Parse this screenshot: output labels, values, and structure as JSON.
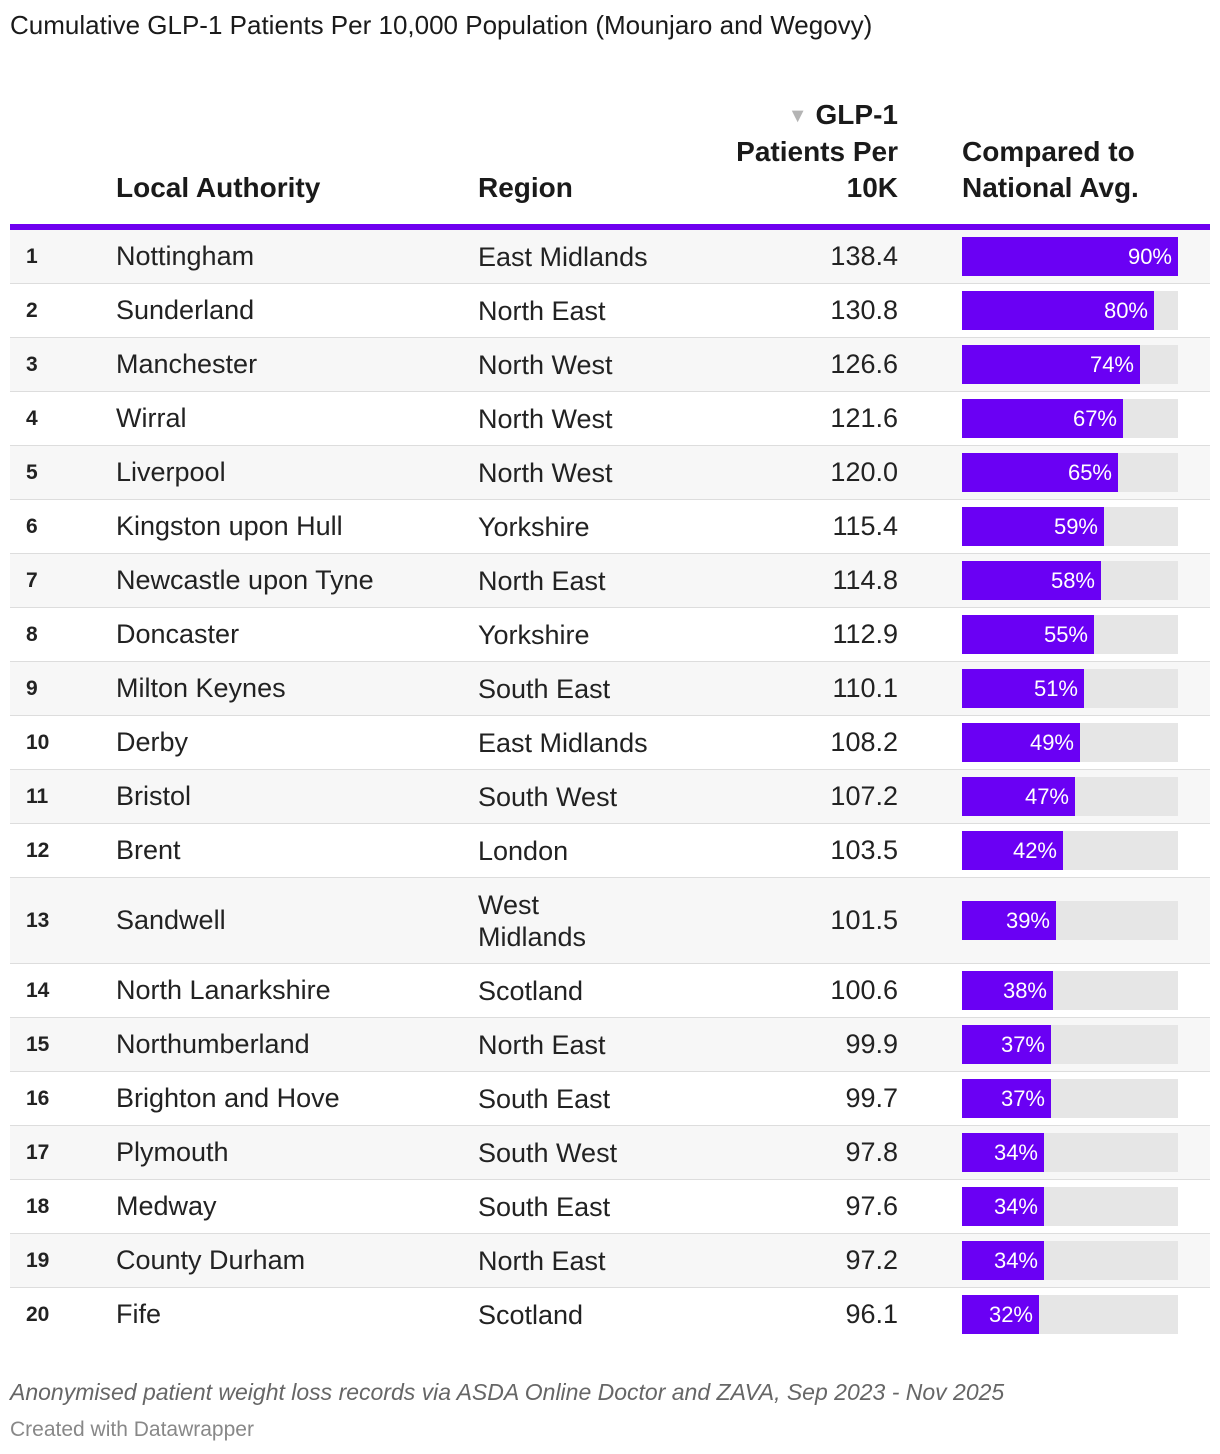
{
  "title": "Cumulative GLP-1 Patients Per 10,000 Population (Mounjaro and Wegovy)",
  "columns": {
    "local_authority": "Local Authority",
    "region": "Region",
    "value_line1": "GLP-1",
    "value_line2": "Patients Per",
    "value_line3": "10K",
    "compare_line1": "Compared to",
    "compare_line2": "National Avg.",
    "sort_icon": "sort-descending-icon"
  },
  "colors": {
    "accent": "#6a00f4",
    "header_rule": "#6f00f0",
    "bar_track": "#e6e6e6",
    "row_stripe": "#f7f7f7"
  },
  "chart_data": {
    "type": "table",
    "bar_max_percent": 90,
    "rows": [
      {
        "rank": "1",
        "authority": "Nottingham",
        "region": "East Midlands",
        "value": "138.4",
        "compare": 90,
        "compare_label": "90%"
      },
      {
        "rank": "2",
        "authority": "Sunderland",
        "region": "North East",
        "value": "130.8",
        "compare": 80,
        "compare_label": "80%"
      },
      {
        "rank": "3",
        "authority": "Manchester",
        "region": "North West",
        "value": "126.6",
        "compare": 74,
        "compare_label": "74%"
      },
      {
        "rank": "4",
        "authority": "Wirral",
        "region": "North West",
        "value": "121.6",
        "compare": 67,
        "compare_label": "67%"
      },
      {
        "rank": "5",
        "authority": "Liverpool",
        "region": "North West",
        "value": "120.0",
        "compare": 65,
        "compare_label": "65%"
      },
      {
        "rank": "6",
        "authority": "Kingston upon Hull",
        "region": "Yorkshire",
        "value": "115.4",
        "compare": 59,
        "compare_label": "59%"
      },
      {
        "rank": "7",
        "authority": "Newcastle upon Tyne",
        "region": "North East",
        "value": "114.8",
        "compare": 58,
        "compare_label": "58%"
      },
      {
        "rank": "8",
        "authority": "Doncaster",
        "region": "Yorkshire",
        "value": "112.9",
        "compare": 55,
        "compare_label": "55%"
      },
      {
        "rank": "9",
        "authority": "Milton Keynes",
        "region": "South East",
        "value": "110.1",
        "compare": 51,
        "compare_label": "51%"
      },
      {
        "rank": "10",
        "authority": "Derby",
        "region": "East Midlands",
        "value": "108.2",
        "compare": 49,
        "compare_label": "49%"
      },
      {
        "rank": "11",
        "authority": "Bristol",
        "region": "South West",
        "value": "107.2",
        "compare": 47,
        "compare_label": "47%"
      },
      {
        "rank": "12",
        "authority": "Brent",
        "region": "London",
        "value": "103.5",
        "compare": 42,
        "compare_label": "42%"
      },
      {
        "rank": "13",
        "authority": "Sandwell",
        "region": "West Midlands",
        "value": "101.5",
        "compare": 39,
        "compare_label": "39%"
      },
      {
        "rank": "14",
        "authority": "North Lanarkshire",
        "region": "Scotland",
        "value": "100.6",
        "compare": 38,
        "compare_label": "38%"
      },
      {
        "rank": "15",
        "authority": "Northumberland",
        "region": "North East",
        "value": "99.9",
        "compare": 37,
        "compare_label": "37%"
      },
      {
        "rank": "16",
        "authority": "Brighton and Hove",
        "region": "South East",
        "value": "99.7",
        "compare": 37,
        "compare_label": "37%"
      },
      {
        "rank": "17",
        "authority": "Plymouth",
        "region": "South West",
        "value": "97.8",
        "compare": 34,
        "compare_label": "34%"
      },
      {
        "rank": "18",
        "authority": "Medway",
        "region": "South East",
        "value": "97.6",
        "compare": 34,
        "compare_label": "34%"
      },
      {
        "rank": "19",
        "authority": "County Durham",
        "region": "North East",
        "value": "97.2",
        "compare": 34,
        "compare_label": "34%"
      },
      {
        "rank": "20",
        "authority": "Fife",
        "region": "Scotland",
        "value": "96.1",
        "compare": 32,
        "compare_label": "32%"
      }
    ]
  },
  "footer": {
    "source": "Anonymised patient weight loss records via ASDA Online Doctor and ZAVA, Sep 2023 - Nov 2025",
    "credit": "Created with Datawrapper"
  }
}
